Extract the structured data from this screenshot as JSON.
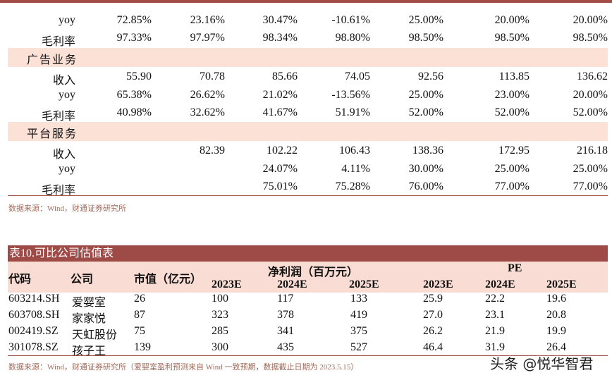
{
  "table1": {
    "rows_top": [
      {
        "label": "yoy",
        "values": [
          "72.85%",
          "23.16%",
          "30.47%",
          "-10.61%",
          "25.00%",
          "20.00%",
          "20.00%"
        ]
      },
      {
        "label": "毛利率",
        "values": [
          "97.33%",
          "97.97%",
          "98.34%",
          "98.80%",
          "98.50%",
          "98.50%",
          "98.50%"
        ]
      }
    ],
    "sections": [
      {
        "title": "广告业务",
        "rows": [
          {
            "label": "收入",
            "values": [
              "55.90",
              "70.78",
              "85.66",
              "74.05",
              "92.56",
              "113.85",
              "136.62"
            ]
          },
          {
            "label": "yoy",
            "values": [
              "65.38%",
              "26.62%",
              "21.02%",
              "-13.56%",
              "25.00%",
              "23.00%",
              "20.00%"
            ]
          },
          {
            "label": "毛利率",
            "values": [
              "40.98%",
              "32.62%",
              "41.67%",
              "51.91%",
              "52.00%",
              "52.00%",
              "52.00%"
            ]
          }
        ]
      },
      {
        "title": "平台服务",
        "rows": [
          {
            "label": "收入",
            "values": [
              "",
              "82.39",
              "102.22",
              "106.43",
              "138.36",
              "172.95",
              "216.18"
            ]
          },
          {
            "label": "yoy",
            "values": [
              "",
              "",
              "24.07%",
              "4.11%",
              "30.00%",
              "25.00%",
              "25.00%"
            ]
          },
          {
            "label": "毛利率",
            "values": [
              "",
              "",
              "75.01%",
              "75.28%",
              "76.00%",
              "77.00%",
              "77.00%"
            ]
          }
        ]
      }
    ],
    "source": "数据来源：Wind，财通证券研究所"
  },
  "table2": {
    "title": "表10.可比公司估值表",
    "headers": {
      "code": "代码",
      "company": "公司",
      "market_cap": "市值（亿元）",
      "net_profit": "净利润（百万元）",
      "pe": "PE",
      "years": [
        "2023E",
        "2024E",
        "2025E",
        "2023E",
        "2024E",
        "2025E"
      ]
    },
    "rows": [
      [
        "603214.SH",
        "爱婴室",
        "26",
        "100",
        "117",
        "133",
        "25.9",
        "22.2",
        "19.6"
      ],
      [
        "603708.SH",
        "家家悦",
        "87",
        "323",
        "378",
        "419",
        "27.0",
        "23.1",
        "20.8"
      ],
      [
        "002419.SZ",
        "天虹股份",
        "75",
        "285",
        "341",
        "375",
        "26.2",
        "21.9",
        "19.9"
      ],
      [
        "301078.SZ",
        "孩子王",
        "139",
        "300",
        "435",
        "527",
        "46.4",
        "31.9",
        "26.4"
      ]
    ],
    "source": "数据来源：Wind，财通证券研究所（爱婴室盈利预测来自 Wind 一致预期，数据截止日期为 2023.5.15）"
  },
  "watermark": "头条 @悦华智君",
  "colors": {
    "accent": "#9e4a47",
    "band": "#fbe1d6"
  }
}
